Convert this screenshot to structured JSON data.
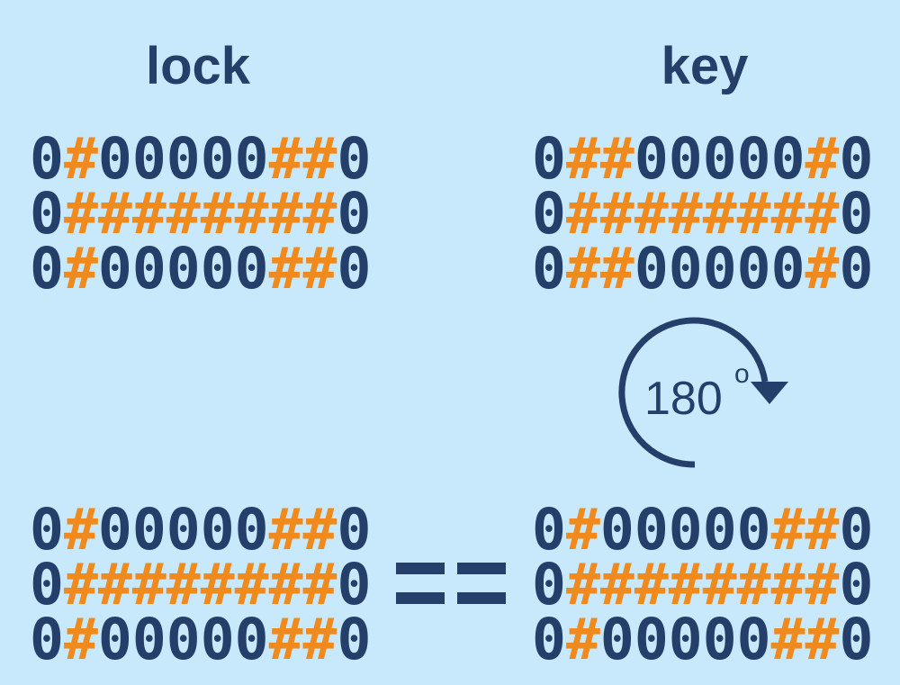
{
  "labels": {
    "lock": "lock",
    "key": "key"
  },
  "grids": {
    "lock": [
      "0#00000##0",
      "0########0",
      "0#00000##0"
    ],
    "key": [
      "0##00000#0",
      "0########0",
      "0##00000#0"
    ],
    "lock_bottom": [
      "0#00000##0",
      "0########0",
      "0#00000##0"
    ],
    "key_rotated": [
      "0#00000##0",
      "0########0",
      "0#00000##0"
    ]
  },
  "rotation": {
    "value": "180",
    "unit": "o"
  },
  "colors": {
    "background": "#c8e8fb",
    "zero": "#253f6b",
    "hash": "#f18a1c"
  }
}
